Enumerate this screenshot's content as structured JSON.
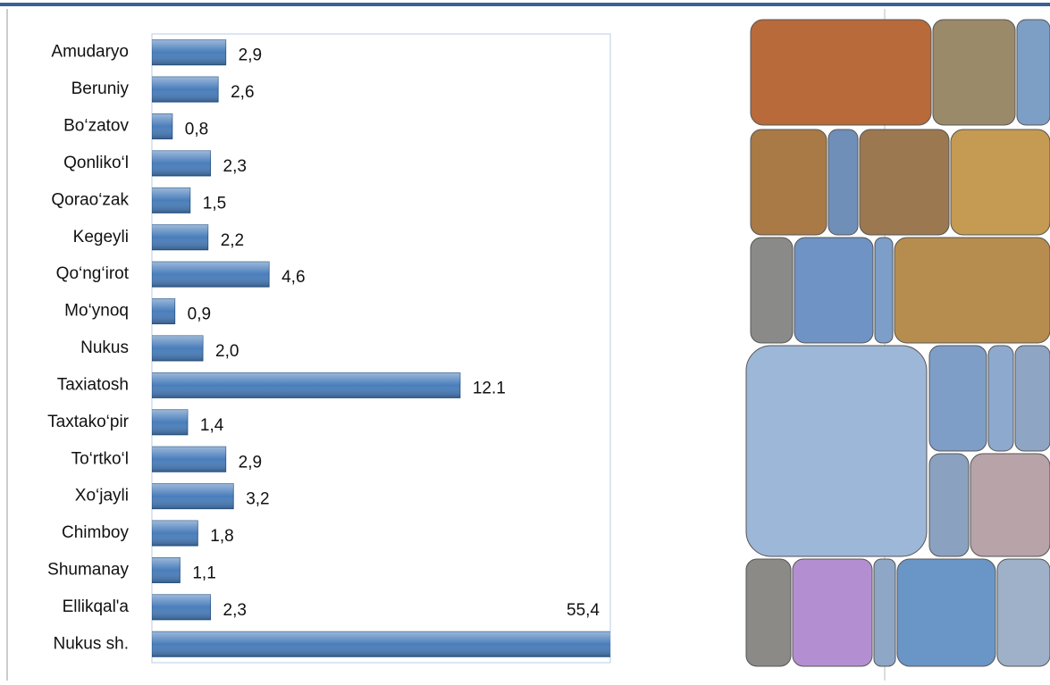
{
  "chart_data": {
    "type": "bar",
    "orientation": "horizontal",
    "categories": [
      "Amudaryo",
      "Beruniy",
      "Bo‘zatov",
      "Qonliko‘l",
      "Qorao‘zak",
      "Kegeyli",
      "Qo‘ng‘irot",
      "Mo‘ynoq",
      "Nukus",
      "Taxiatosh",
      "Taxtako‘pir",
      "To‘rtko‘l",
      "Xo‘jayli",
      "Chimboy",
      "Shumanay",
      "Ellikqal'a",
      "Nukus sh."
    ],
    "values": [
      2.9,
      2.6,
      0.8,
      2.3,
      1.5,
      2.2,
      4.6,
      0.9,
      2.0,
      12.1,
      1.4,
      2.9,
      3.2,
      1.8,
      1.1,
      2.3,
      55.4
    ],
    "value_labels": [
      "2,9",
      "2,6",
      "0,8",
      "2,3",
      "1,5",
      "2,2",
      "4,6",
      "0,9",
      "2,0",
      "12.1",
      "1,4",
      "2,9",
      "3,2",
      "1,8",
      "1,1",
      "2,3",
      "55,4"
    ],
    "color": "#4a7ebb",
    "xlim": [
      0,
      18
    ]
  }
}
